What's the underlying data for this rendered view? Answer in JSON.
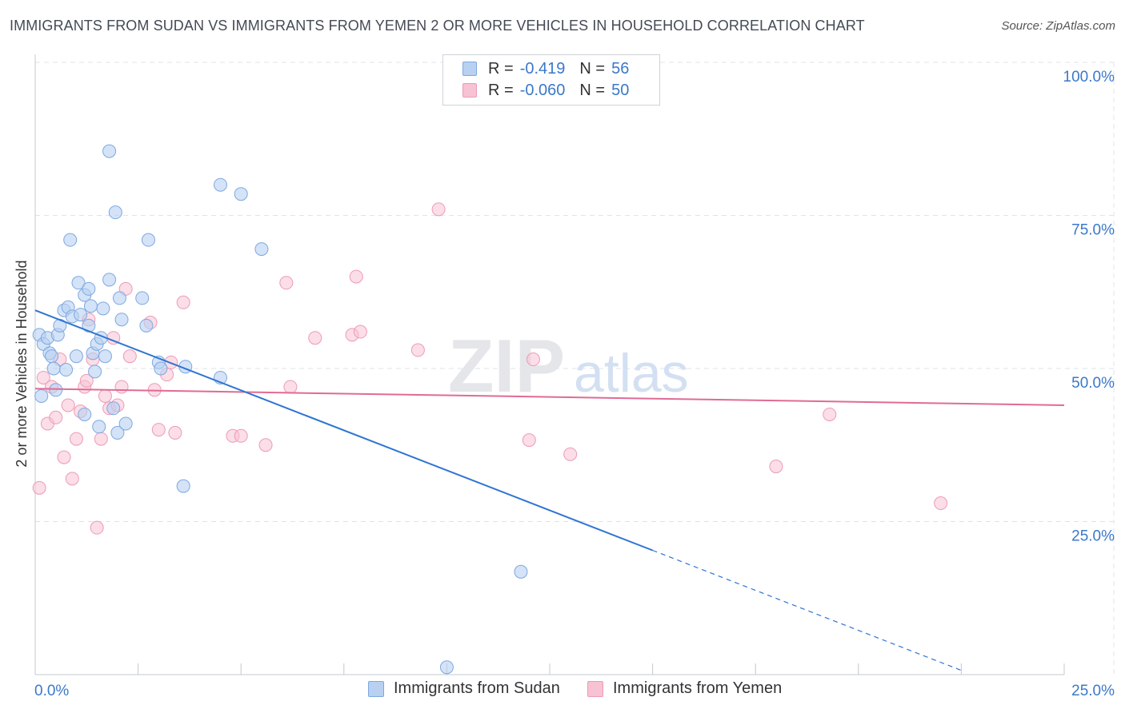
{
  "title": "IMMIGRANTS FROM SUDAN VS IMMIGRANTS FROM YEMEN 2 OR MORE VEHICLES IN HOUSEHOLD CORRELATION CHART",
  "source": "Source: ZipAtlas.com",
  "watermark": {
    "zip": "ZIP",
    "atlas": "atlas"
  },
  "legend": {
    "sudan": {
      "r_label": "R =",
      "r_value": "-0.419",
      "n_label": "N =",
      "n_value": "56"
    },
    "yemen": {
      "r_label": "R =",
      "r_value": "-0.060",
      "n_label": "N =",
      "n_value": "50"
    }
  },
  "colors": {
    "sudan_fill": "#b8d1f1",
    "sudan_stroke": "#7ea8e0",
    "sudan_line": "#2e74d3",
    "yemen_fill": "#f7c2d3",
    "yemen_stroke": "#ee9ab6",
    "yemen_line": "#e06b95",
    "tick_label": "#3b78c9",
    "grid": "#dfe3e8"
  },
  "chart_data": {
    "type": "scatter",
    "title": "IMMIGRANTS FROM SUDAN VS IMMIGRANTS FROM YEMEN 2 OR MORE VEHICLES IN HOUSEHOLD CORRELATION CHART",
    "xlabel": "",
    "ylabel": "2 or more Vehicles in Household",
    "xlim": [
      0,
      25
    ],
    "ylim": [
      0,
      100
    ],
    "x_tick_labels": [
      "0.0%",
      "25.0%"
    ],
    "y_ticks": [
      25,
      50,
      75,
      100
    ],
    "y_tick_labels": [
      "25.0%",
      "50.0%",
      "75.0%",
      "100.0%"
    ],
    "grid": true,
    "series": [
      {
        "name": "Immigrants from Sudan",
        "trend": {
          "x0": 0,
          "y0": 59.5,
          "x1": 15,
          "y1": 20.3,
          "dash_to_x": 22.5
        },
        "points": [
          [
            0.1,
            55.5
          ],
          [
            0.2,
            54.0
          ],
          [
            0.3,
            55.0
          ],
          [
            0.35,
            52.5
          ],
          [
            0.4,
            52.0
          ],
          [
            0.45,
            50.0
          ],
          [
            0.5,
            46.5
          ],
          [
            0.55,
            55.5
          ],
          [
            0.6,
            57.0
          ],
          [
            0.7,
            59.5
          ],
          [
            0.75,
            49.8
          ],
          [
            0.8,
            60.0
          ],
          [
            0.85,
            71.0
          ],
          [
            0.9,
            58.5
          ],
          [
            1.0,
            52.0
          ],
          [
            1.05,
            64.0
          ],
          [
            1.1,
            58.8
          ],
          [
            1.2,
            62.0
          ],
          [
            1.2,
            42.5
          ],
          [
            1.3,
            63.0
          ],
          [
            1.3,
            57.0
          ],
          [
            1.35,
            60.2
          ],
          [
            1.4,
            52.5
          ],
          [
            1.45,
            49.5
          ],
          [
            1.5,
            54.0
          ],
          [
            1.55,
            40.5
          ],
          [
            1.6,
            55.0
          ],
          [
            1.65,
            59.8
          ],
          [
            1.7,
            52.0
          ],
          [
            1.8,
            85.5
          ],
          [
            1.8,
            64.5
          ],
          [
            1.9,
            43.5
          ],
          [
            1.95,
            75.5
          ],
          [
            2.0,
            39.5
          ],
          [
            2.05,
            61.5
          ],
          [
            2.1,
            58.0
          ],
          [
            2.2,
            41.0
          ],
          [
            2.6,
            61.5
          ],
          [
            2.7,
            57.0
          ],
          [
            2.75,
            71.0
          ],
          [
            3.0,
            51.0
          ],
          [
            3.05,
            50.0
          ],
          [
            3.6,
            30.8
          ],
          [
            3.65,
            50.3
          ],
          [
            4.5,
            48.5
          ],
          [
            4.5,
            80.0
          ],
          [
            5.0,
            78.5
          ],
          [
            5.5,
            69.5
          ],
          [
            10.0,
            1.2
          ],
          [
            11.8,
            16.8
          ],
          [
            0.15,
            45.5
          ]
        ]
      },
      {
        "name": "Immigrants from Yemen",
        "trend": {
          "x0": 0,
          "y0": 46.7,
          "x1": 25,
          "y1": 44.0
        },
        "points": [
          [
            0.1,
            30.5
          ],
          [
            0.2,
            48.5
          ],
          [
            0.3,
            41.0
          ],
          [
            0.4,
            47.0
          ],
          [
            0.5,
            42.0
          ],
          [
            0.6,
            51.5
          ],
          [
            0.7,
            35.5
          ],
          [
            0.8,
            44.0
          ],
          [
            0.9,
            32.0
          ],
          [
            1.0,
            38.5
          ],
          [
            1.1,
            43.0
          ],
          [
            1.2,
            47.0
          ],
          [
            1.3,
            58.0
          ],
          [
            1.4,
            51.5
          ],
          [
            1.5,
            24.0
          ],
          [
            1.6,
            38.5
          ],
          [
            1.7,
            45.5
          ],
          [
            1.8,
            43.5
          ],
          [
            1.9,
            55.0
          ],
          [
            2.0,
            44.0
          ],
          [
            2.1,
            47.0
          ],
          [
            2.2,
            63.0
          ],
          [
            2.3,
            52.0
          ],
          [
            2.8,
            57.5
          ],
          [
            2.9,
            46.5
          ],
          [
            3.0,
            40.0
          ],
          [
            3.2,
            49.0
          ],
          [
            3.3,
            51.0
          ],
          [
            3.4,
            39.5
          ],
          [
            3.6,
            60.8
          ],
          [
            4.8,
            39.0
          ],
          [
            5.0,
            39.0
          ],
          [
            5.6,
            37.5
          ],
          [
            6.1,
            64.0
          ],
          [
            6.2,
            47.0
          ],
          [
            6.8,
            55.0
          ],
          [
            7.7,
            55.5
          ],
          [
            7.8,
            65.0
          ],
          [
            7.9,
            56.0
          ],
          [
            9.3,
            53.0
          ],
          [
            9.8,
            76.0
          ],
          [
            12.0,
            38.3
          ],
          [
            12.1,
            51.5
          ],
          [
            13.0,
            36.0
          ],
          [
            18.0,
            34.0
          ],
          [
            19.3,
            42.5
          ],
          [
            22.0,
            28.0
          ],
          [
            1.25,
            48.0
          ]
        ]
      }
    ]
  },
  "bottom_legend": {
    "sudan": "Immigrants from Sudan",
    "yemen": "Immigrants from Yemen"
  }
}
